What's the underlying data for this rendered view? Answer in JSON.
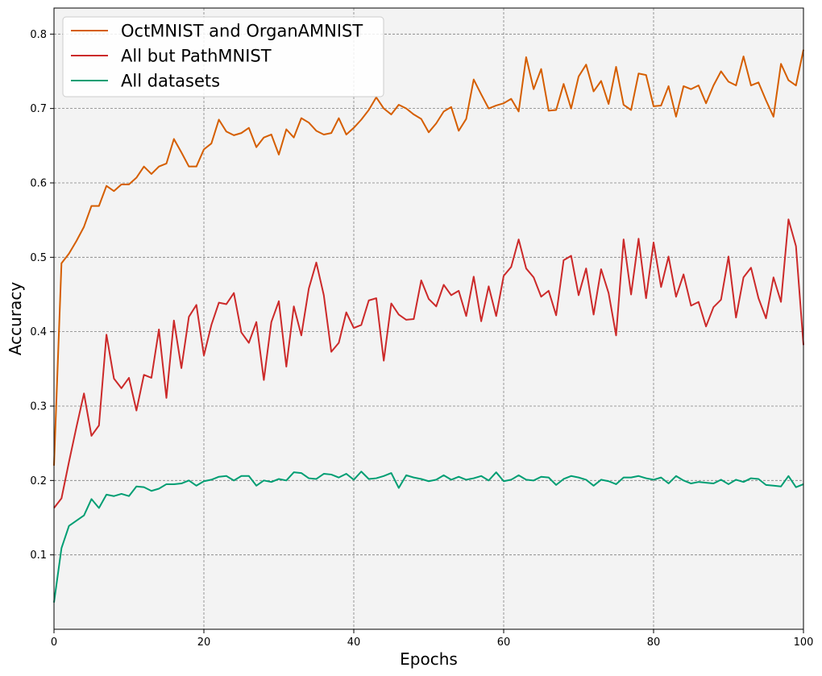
{
  "chart_data": {
    "type": "line",
    "title": "",
    "xlabel": "Epochs",
    "ylabel": "Accuracy",
    "xlim": [
      0,
      100
    ],
    "ylim": [
      0.0,
      0.835
    ],
    "xticks": [
      0,
      20,
      40,
      60,
      80,
      100
    ],
    "yticks": [
      0.1,
      0.2,
      0.3,
      0.4,
      0.5,
      0.6,
      0.7,
      0.8
    ],
    "xtick_labels": [
      "0",
      "20",
      "40",
      "60",
      "80",
      "100"
    ],
    "ytick_labels": [
      "0.1",
      "0.2",
      "0.3",
      "0.4",
      "0.5",
      "0.6",
      "0.7",
      "0.8"
    ],
    "grid": true,
    "legend_position": "top-left",
    "colors": {
      "plot_background": "#f3f3f3",
      "grid": "#808080"
    },
    "x": [
      0,
      1,
      2,
      3,
      4,
      5,
      6,
      7,
      8,
      9,
      10,
      11,
      12,
      13,
      14,
      15,
      16,
      17,
      18,
      19,
      20,
      21,
      22,
      23,
      24,
      25,
      26,
      27,
      28,
      29,
      30,
      31,
      32,
      33,
      34,
      35,
      36,
      37,
      38,
      39,
      40,
      41,
      42,
      43,
      44,
      45,
      46,
      47,
      48,
      49,
      50,
      51,
      52,
      53,
      54,
      55,
      56,
      57,
      58,
      59,
      60,
      61,
      62,
      63,
      64,
      65,
      66,
      67,
      68,
      69,
      70,
      71,
      72,
      73,
      74,
      75,
      76,
      77,
      78,
      79,
      80,
      81,
      82,
      83,
      84,
      85,
      86,
      87,
      88,
      89,
      90,
      91,
      92,
      93,
      94,
      95,
      96,
      97,
      98,
      99,
      100
    ],
    "series": [
      {
        "name": "OctMNIST and OrganAMNIST",
        "color": "#d55e00",
        "values": [
          0.22,
          0.492,
          0.505,
          0.522,
          0.541,
          0.569,
          0.569,
          0.596,
          0.589,
          0.598,
          0.598,
          0.607,
          0.622,
          0.612,
          0.622,
          0.626,
          0.659,
          0.641,
          0.622,
          0.622,
          0.645,
          0.653,
          0.685,
          0.669,
          0.664,
          0.667,
          0.674,
          0.648,
          0.661,
          0.665,
          0.638,
          0.672,
          0.661,
          0.687,
          0.681,
          0.67,
          0.665,
          0.667,
          0.687,
          0.665,
          0.674,
          0.685,
          0.698,
          0.715,
          0.7,
          0.692,
          0.705,
          0.7,
          0.692,
          0.686,
          0.668,
          0.68,
          0.696,
          0.702,
          0.67,
          0.686,
          0.739,
          0.719,
          0.7,
          0.704,
          0.707,
          0.713,
          0.696,
          0.769,
          0.726,
          0.753,
          0.697,
          0.698,
          0.733,
          0.7,
          0.743,
          0.759,
          0.723,
          0.737,
          0.706,
          0.756,
          0.705,
          0.698,
          0.747,
          0.745,
          0.703,
          0.704,
          0.73,
          0.689,
          0.73,
          0.726,
          0.731,
          0.707,
          0.731,
          0.75,
          0.736,
          0.731,
          0.77,
          0.731,
          0.735,
          0.711,
          0.689,
          0.76,
          0.738,
          0.731,
          0.779
        ]
      },
      {
        "name": "All but PathMNIST",
        "color": "#cc2a2a",
        "values": [
          0.163,
          0.176,
          0.225,
          0.272,
          0.317,
          0.26,
          0.274,
          0.396,
          0.337,
          0.324,
          0.338,
          0.294,
          0.342,
          0.338,
          0.403,
          0.311,
          0.415,
          0.351,
          0.42,
          0.436,
          0.368,
          0.409,
          0.439,
          0.437,
          0.452,
          0.399,
          0.385,
          0.413,
          0.335,
          0.413,
          0.441,
          0.353,
          0.434,
          0.395,
          0.458,
          0.493,
          0.449,
          0.373,
          0.385,
          0.426,
          0.405,
          0.409,
          0.442,
          0.445,
          0.361,
          0.438,
          0.423,
          0.416,
          0.417,
          0.469,
          0.444,
          0.434,
          0.463,
          0.449,
          0.455,
          0.421,
          0.474,
          0.414,
          0.461,
          0.421,
          0.475,
          0.487,
          0.524,
          0.485,
          0.473,
          0.447,
          0.455,
          0.422,
          0.496,
          0.502,
          0.449,
          0.485,
          0.423,
          0.484,
          0.452,
          0.395,
          0.524,
          0.45,
          0.525,
          0.445,
          0.52,
          0.46,
          0.501,
          0.447,
          0.477,
          0.435,
          0.44,
          0.407,
          0.433,
          0.443,
          0.501,
          0.419,
          0.473,
          0.486,
          0.445,
          0.418,
          0.473,
          0.44,
          0.551,
          0.515,
          0.382
        ]
      },
      {
        "name": "All datasets",
        "color": "#009e73",
        "values": [
          0.036,
          0.109,
          0.139,
          0.146,
          0.153,
          0.175,
          0.163,
          0.181,
          0.179,
          0.182,
          0.179,
          0.192,
          0.191,
          0.186,
          0.189,
          0.195,
          0.195,
          0.196,
          0.2,
          0.193,
          0.199,
          0.201,
          0.205,
          0.206,
          0.2,
          0.206,
          0.206,
          0.193,
          0.2,
          0.198,
          0.202,
          0.2,
          0.211,
          0.21,
          0.203,
          0.202,
          0.209,
          0.208,
          0.204,
          0.209,
          0.201,
          0.212,
          0.202,
          0.203,
          0.206,
          0.21,
          0.19,
          0.207,
          0.204,
          0.202,
          0.199,
          0.201,
          0.207,
          0.201,
          0.205,
          0.201,
          0.203,
          0.206,
          0.2,
          0.211,
          0.199,
          0.201,
          0.207,
          0.201,
          0.2,
          0.205,
          0.204,
          0.194,
          0.202,
          0.206,
          0.204,
          0.201,
          0.193,
          0.201,
          0.199,
          0.195,
          0.204,
          0.204,
          0.206,
          0.203,
          0.201,
          0.204,
          0.196,
          0.206,
          0.2,
          0.196,
          0.198,
          0.197,
          0.196,
          0.201,
          0.195,
          0.201,
          0.198,
          0.203,
          0.202,
          0.194,
          0.193,
          0.192,
          0.206,
          0.191,
          0.195
        ]
      }
    ]
  }
}
